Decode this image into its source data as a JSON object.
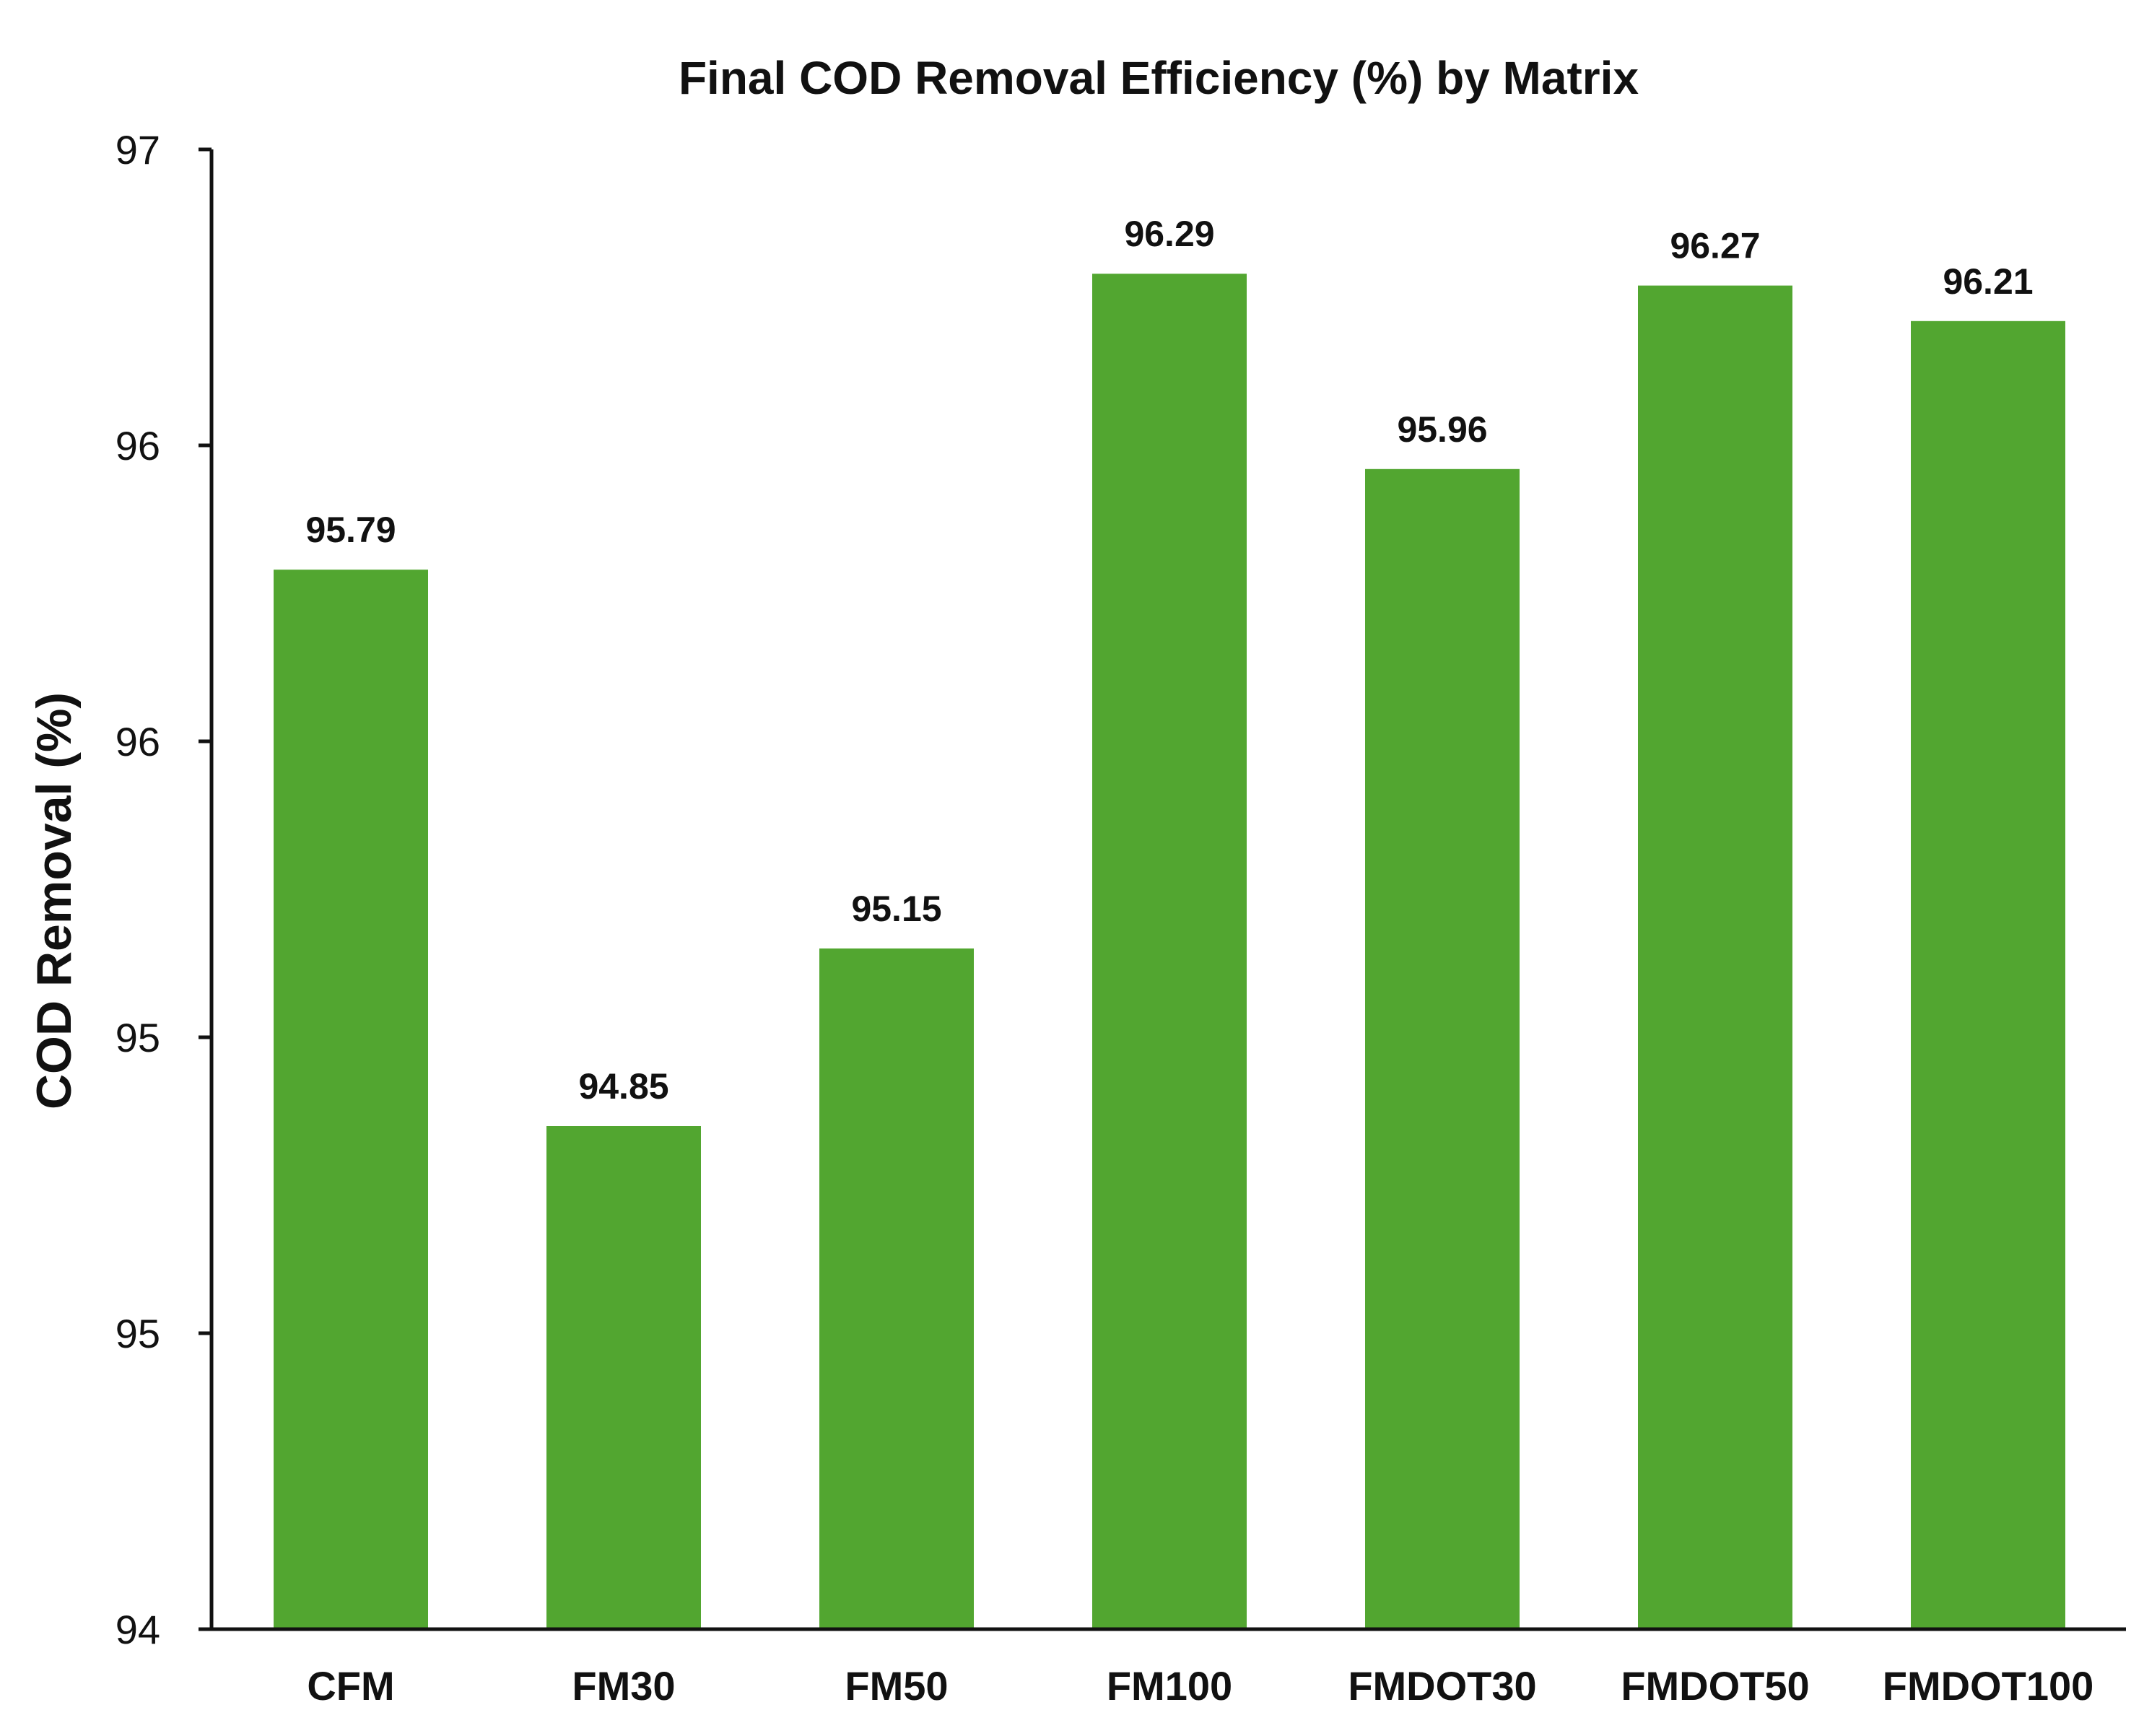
{
  "chart_data": {
    "type": "bar",
    "title": "Final COD Removal Efficiency (%) by Matrix",
    "xlabel": "",
    "ylabel": "COD Removal (%)",
    "categories": [
      "CFM",
      "FM30",
      "FM50",
      "FM100",
      "FMDOT30",
      "FMDOT50",
      "FMDOT100"
    ],
    "values": [
      95.79,
      94.85,
      95.15,
      96.29,
      95.96,
      96.27,
      96.21
    ],
    "data_labels": [
      "95.79",
      "94.85",
      "95.15",
      "96.29",
      "95.96",
      "96.27",
      "96.21"
    ],
    "ylim": [
      94,
      96.5
    ],
    "y_ticks": [
      94,
      94.5,
      95,
      95.5,
      96,
      96.5
    ],
    "y_tick_labels": [
      "94",
      "95",
      "95",
      "96",
      "96",
      "97"
    ],
    "grid": false,
    "legend": "none",
    "bar_color": "#52a630",
    "axis_color": "#111111"
  }
}
